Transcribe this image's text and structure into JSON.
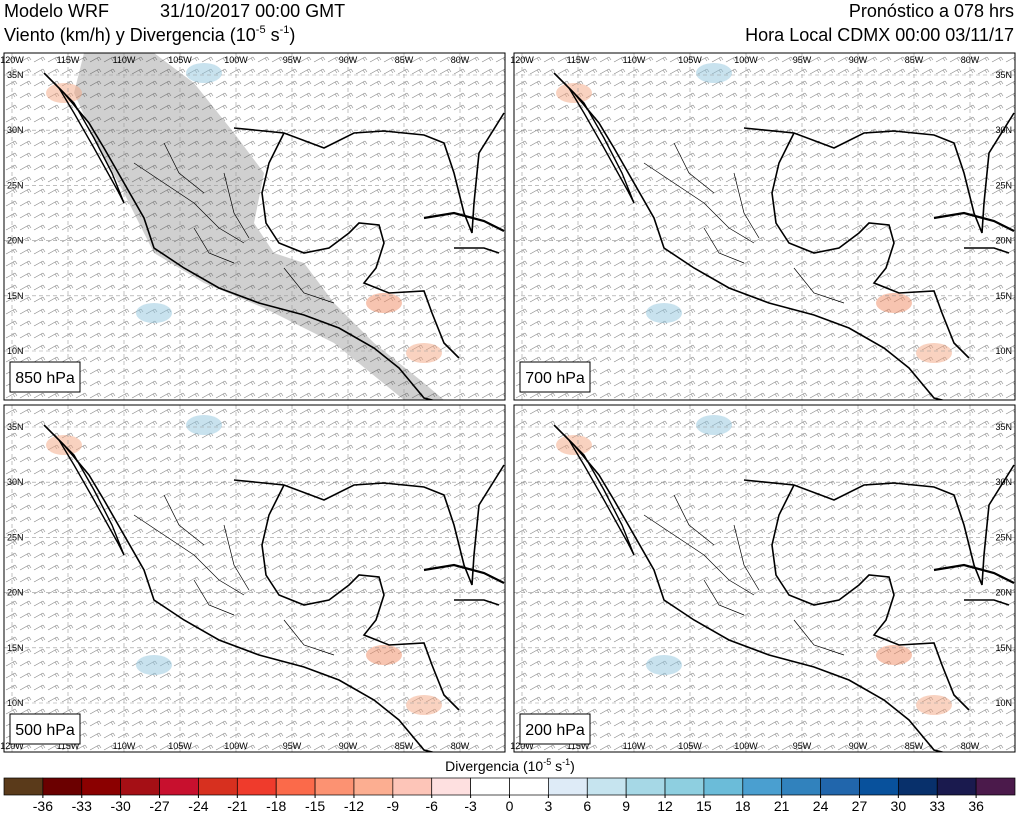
{
  "header": {
    "model": "Modelo WRF",
    "date": "31/10/2017 00:00 GMT",
    "variable": {
      "text": "Viento (km/h) y Divergencia (10",
      "exp1": "-5",
      "mid": " s",
      "exp2": "-1",
      "end": ")"
    },
    "forecast": "Pronóstico a 078 hrs",
    "local": "Hora Local CDMX 00:00 03/11/17"
  },
  "panels": [
    {
      "label": "850 hPa"
    },
    {
      "label": "700 hPa"
    },
    {
      "label": "500 hPa"
    },
    {
      "label": "200 hPa"
    }
  ],
  "longitudes": [
    "120W",
    "115W",
    "110W",
    "105W",
    "100W",
    "95W",
    "90W",
    "85W",
    "80W"
  ],
  "latitudes": [
    "35N",
    "30N",
    "25N",
    "20N",
    "15N",
    "10N"
  ],
  "colorbar": {
    "title": {
      "text": "Divergencia (10",
      "exp1": "-5",
      "mid": " s",
      "exp2": "-1",
      "end": ")"
    },
    "ticks": [
      -36,
      -33,
      -30,
      -27,
      -24,
      -21,
      -18,
      -15,
      -12,
      -9,
      -6,
      -3,
      0,
      3,
      6,
      9,
      12,
      15,
      18,
      21,
      24,
      27,
      30,
      33,
      36
    ],
    "colors": [
      "#5a3a1a",
      "#6b0000",
      "#8b0000",
      "#a50f15",
      "#c8102e",
      "#d7301f",
      "#ef3b2c",
      "#fb6a4a",
      "#fc9272",
      "#fcae91",
      "#fdc5b8",
      "#fee0e0",
      "#ffffff",
      "#ffffff",
      "#deebf7",
      "#c6e4ef",
      "#a6d8e6",
      "#8ecfe0",
      "#6bbcd9",
      "#4a9fd0",
      "#3182bd",
      "#2166ac",
      "#08519c",
      "#08306b",
      "#1a1a4e",
      "#4b1a4b"
    ]
  }
}
